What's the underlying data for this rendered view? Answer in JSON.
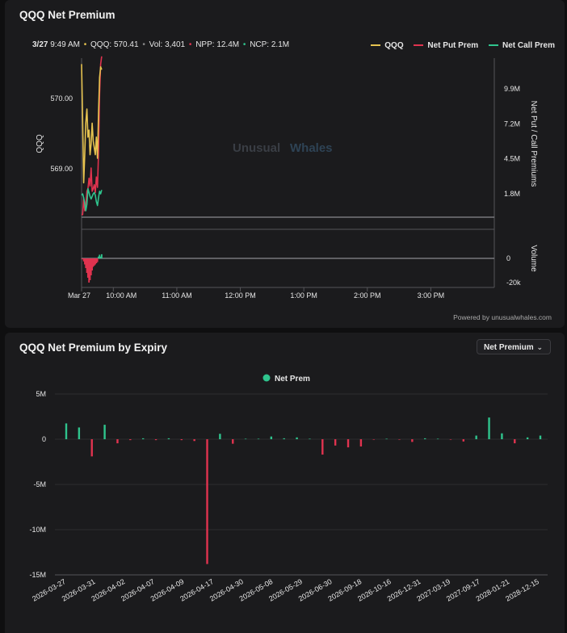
{
  "panel1": {
    "title": "QQQ Net Premium",
    "info": {
      "date": "3/27",
      "time": "9:49 AM",
      "qqq_label": "QQQ:",
      "qqq_value": "570.41",
      "vol_label": "Vol:",
      "vol_value": "3,401",
      "npp_label": "NPP:",
      "npp_value": "12.4M",
      "ncp_label": "NCP:",
      "ncp_value": "2.1M"
    },
    "legend": [
      "QQQ",
      "Net Put Prem",
      "Net Call Prem"
    ],
    "watermark_a": "Unusual",
    "watermark_b": "Whales",
    "powered_by": "Powered by unusualwhales.com"
  },
  "panel2": {
    "title": "QQQ Net Premium by Expiry",
    "dropdown_value": "Net Premium"
  },
  "colors": {
    "qqq": "#e6c350",
    "put": "#e0334f",
    "call": "#2fc48d",
    "grid": "#2c2c30",
    "text": "#e6e6e6",
    "axis": "#555559"
  },
  "chart_data": [
    {
      "type": "line",
      "title": "QQQ Net Premium",
      "xlabel": "",
      "ylabel": "QQQ",
      "ylabel_right": "Net Put / Call Premiums",
      "y_ticks_left": [
        "570.00",
        "569.00"
      ],
      "y_ticks_right": [
        "9.9M",
        "7.2M",
        "4.5M",
        "1.8M"
      ],
      "x_ticks": [
        "Mar 27",
        "10:00 AM",
        "11:00 AM",
        "12:00 PM",
        "1:00 PM",
        "2:00 PM",
        "3:00 PM"
      ],
      "volume_label": "Volume",
      "volume_ticks": [
        "0",
        "-20k"
      ],
      "x_minutes": [
        30,
        31,
        32,
        33,
        34,
        35,
        36,
        37,
        38,
        39,
        40,
        41,
        42,
        43,
        44,
        45,
        46,
        47,
        48,
        49
      ],
      "series": [
        {
          "name": "QQQ",
          "values": [
            570.49,
            569.7,
            568.8,
            569.2,
            569.65,
            569.85,
            569.45,
            569.55,
            569.2,
            569.35,
            569.65,
            569.4,
            569.3,
            569.2,
            569.45,
            569.15,
            569.8,
            570.3,
            570.45,
            570.41
          ]
        },
        {
          "name": "Net Put Prem",
          "values": [
            0.2,
            0.2,
            1.5,
            0.5,
            0.9,
            2.0,
            2.2,
            3.0,
            2.4,
            3.8,
            2.0,
            2.2,
            2.5,
            1.9,
            3.1,
            2.3,
            5.0,
            9.5,
            11.8,
            12.4
          ]
        },
        {
          "name": "Net Call Prem",
          "values": [
            1.7,
            1.8,
            1.5,
            1.1,
            0.5,
            1.0,
            2.2,
            1.9,
            1.6,
            1.4,
            1.6,
            1.8,
            1.9,
            1.7,
            1.2,
            0.9,
            1.5,
            2.0,
            1.8,
            2.1
          ]
        }
      ],
      "volume": [
        -200,
        -800,
        -2500,
        -5000,
        -8000,
        -12000,
        -16000,
        -20000,
        -18000,
        -14000,
        -10000,
        -7000,
        -6000,
        -5000,
        -4000,
        -3000,
        1500,
        3000,
        1500,
        3401
      ]
    },
    {
      "type": "bar",
      "title": "QQQ Net Premium by Expiry",
      "legend": [
        "Net Prem"
      ],
      "y_ticks": [
        "5M",
        "0",
        "-5M",
        "-10M",
        "-15M"
      ],
      "ylim": [
        -15,
        5
      ],
      "x_tick_labels": [
        "2026-03-27",
        "2026-03-31",
        "2026-04-02",
        "2026-04-07",
        "2026-04-09",
        "2026-04-17",
        "2026-04-30",
        "2026-05-08",
        "2026-05-29",
        "2026-06-30",
        "2026-09-18",
        "2026-10-16",
        "2026-12-31",
        "2027-03-19",
        "2027-09-17",
        "2028-01-21",
        "2028-12-15"
      ],
      "values": [
        1.75,
        1.3,
        -1.9,
        1.6,
        -0.45,
        -0.1,
        0.1,
        -0.1,
        0.1,
        -0.1,
        -0.2,
        -13.8,
        0.6,
        -0.5,
        0.05,
        0.05,
        0.3,
        0.1,
        0.2,
        0.05,
        -1.7,
        -0.7,
        -0.9,
        -0.8,
        -0.05,
        0.05,
        -0.05,
        -0.3,
        0.1,
        0.05,
        -0.05,
        -0.25,
        0.4,
        2.4,
        0.65,
        -0.45,
        0.2,
        0.4
      ]
    }
  ]
}
